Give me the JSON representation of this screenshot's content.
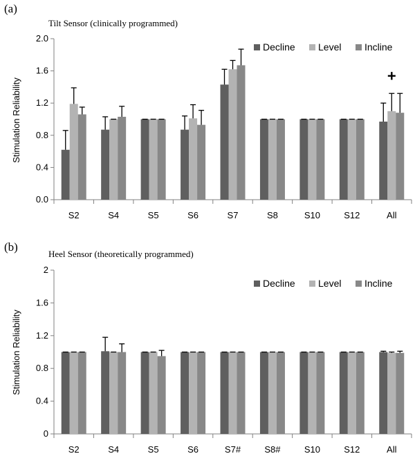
{
  "colors": {
    "decline": "#5f5f5f",
    "level": "#b3b3b3",
    "incline": "#888888",
    "axis": "#808080",
    "error": "#000000"
  },
  "chart_data": [
    {
      "type": "bar",
      "panel_label": "(a)",
      "title": "Tilt Sensor (clinically programmed)",
      "ylabel": "Stimulation Reliability",
      "xlabel": "",
      "ylim": [
        0,
        2
      ],
      "yticks": [
        "0.0",
        "0.4",
        "0.8",
        "1.2",
        "1.6",
        "2.0"
      ],
      "grid": false,
      "legend_position": "top-right",
      "categories": [
        "S2",
        "S4",
        "S5",
        "S6",
        "S7",
        "S8",
        "S10",
        "S12",
        "All"
      ],
      "series": [
        {
          "name": "Decline",
          "values": [
            0.62,
            0.87,
            1.0,
            0.87,
            1.43,
            1.0,
            1.0,
            1.0,
            0.97
          ],
          "errors": [
            0.24,
            0.16,
            0,
            0.17,
            0.19,
            0,
            0,
            0,
            0.23
          ]
        },
        {
          "name": "Level",
          "values": [
            1.19,
            1.0,
            1.0,
            1.01,
            1.62,
            1.0,
            1.0,
            1.0,
            1.1
          ],
          "errors": [
            0.2,
            0,
            0,
            0.17,
            0.11,
            0,
            0,
            0,
            0.22
          ]
        },
        {
          "name": "Incline",
          "values": [
            1.06,
            1.03,
            1.0,
            0.93,
            1.67,
            1.0,
            1.0,
            1.0,
            1.08
          ],
          "errors": [
            0.09,
            0.13,
            0,
            0.18,
            0.2,
            0,
            0,
            0,
            0.24
          ]
        }
      ],
      "annotations": [
        {
          "text": "+",
          "category": "All",
          "y": 1.54
        }
      ]
    },
    {
      "type": "bar",
      "panel_label": "(b)",
      "title": "Heel Sensor (theoretically programmed)",
      "ylabel": "Stimulation Reliability",
      "xlabel": "",
      "ylim": [
        0,
        2
      ],
      "yticks": [
        "0",
        "0.4",
        "0.8",
        "1.2",
        "1.6",
        "2"
      ],
      "grid": false,
      "legend_position": "top-right",
      "categories": [
        "S2",
        "S4",
        "S5",
        "S6",
        "S7#",
        "S8#",
        "S10",
        "S12",
        "All"
      ],
      "series": [
        {
          "name": "Decline",
          "values": [
            1.0,
            1.01,
            1.0,
            1.0,
            1.0,
            1.0,
            1.0,
            1.0,
            1.0
          ],
          "errors": [
            0,
            0.17,
            0,
            0,
            0,
            0,
            0,
            0,
            0.01
          ]
        },
        {
          "name": "Level",
          "values": [
            1.0,
            1.0,
            1.0,
            1.0,
            1.0,
            1.0,
            1.0,
            1.0,
            0.99
          ],
          "errors": [
            0,
            0,
            0,
            0,
            0,
            0,
            0,
            0,
            0.01
          ]
        },
        {
          "name": "Incline",
          "values": [
            1.0,
            1.0,
            0.95,
            1.0,
            1.0,
            1.0,
            1.0,
            1.0,
            0.99
          ],
          "errors": [
            0,
            0.1,
            0.07,
            0,
            0,
            0,
            0,
            0,
            0.02
          ]
        }
      ],
      "annotations": []
    }
  ]
}
